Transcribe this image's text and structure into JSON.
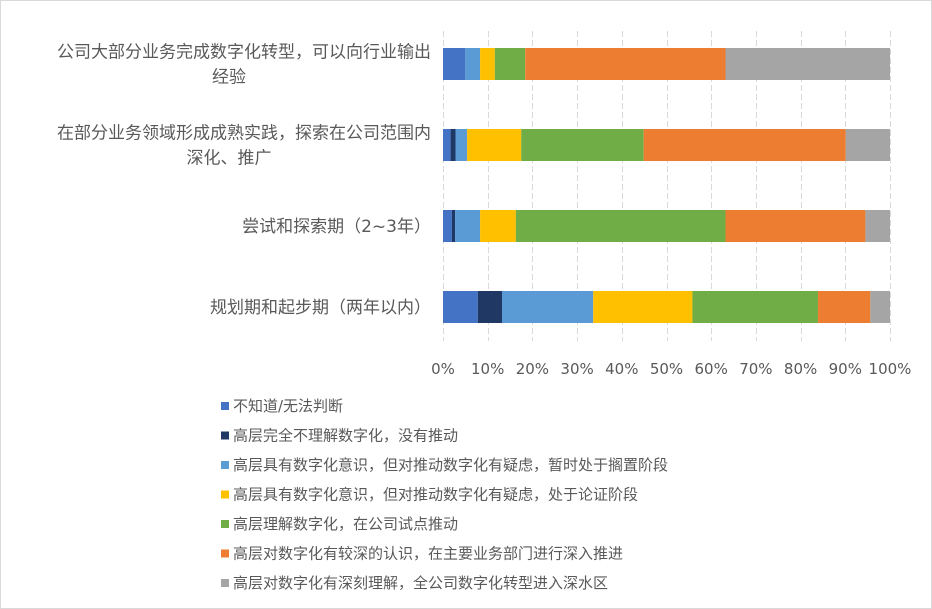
{
  "chart_data": {
    "type": "bar",
    "orientation": "horizontal",
    "stacked": "percent",
    "title": "",
    "xlabel": "",
    "ylabel": "",
    "xlim": [
      0,
      100
    ],
    "grid": true,
    "legend_position": "bottom",
    "ticks": [
      "0%",
      "10%",
      "20%",
      "30%",
      "40%",
      "50%",
      "60%",
      "70%",
      "80%",
      "90%",
      "100%"
    ],
    "categories": [
      [
        "公司大部分业务完成数字化转型，可以向行业输出",
        "经验"
      ],
      [
        "在部分业务领域形成成熟实践，探索在公司范围内",
        "深化、推广"
      ],
      [
        "尝试和探索期（2~3年）"
      ],
      [
        "规划期和起步期（两年以内）"
      ]
    ],
    "series": [
      {
        "name": "不知道/无法判断",
        "color": "#4472c4",
        "values": [
          5.0,
          1.7,
          2.0,
          7.8
        ]
      },
      {
        "name": "高层完全不理解数字化，没有推动",
        "color": "#1f3864",
        "values": [
          0.0,
          1.1,
          0.7,
          5.4
        ]
      },
      {
        "name": "高层具有数字化意识，但对推动数字化有疑虑，暂时处于搁置阶段",
        "color": "#5b9bd5",
        "values": [
          3.3,
          2.6,
          5.6,
          20.4
        ]
      },
      {
        "name": "高层具有数字化意识，但对推动数字化有疑虑，处于论证阶段",
        "color": "#ffc000",
        "values": [
          3.3,
          12.1,
          8.0,
          22.2
        ]
      },
      {
        "name": "高层理解数字化，在公司试点推动",
        "color": "#70ad47",
        "values": [
          6.8,
          27.4,
          46.9,
          28.1
        ]
      },
      {
        "name": "高层对数字化有较深的认识，在主要业务部门进行深入推进",
        "color": "#ed7d31",
        "values": [
          44.8,
          45.2,
          31.3,
          11.7
        ]
      },
      {
        "name": "高层对数字化有深刻理解，全公司数字化转型进入深水区",
        "color": "#a5a5a5",
        "values": [
          36.8,
          9.9,
          5.5,
          4.4
        ]
      }
    ]
  }
}
